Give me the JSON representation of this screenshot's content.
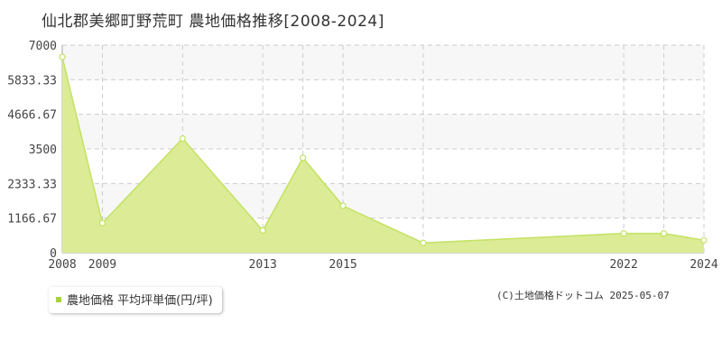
{
  "title": "仙北郡美郷町野荒町 農地価格推移[2008-2024]",
  "legend_label": "農地価格 平均坪単価(円/坪)",
  "copyright": "(C)土地価格ドットコム 2025-05-07",
  "colors": {
    "fill": "#dceb95",
    "line": "#c3e264",
    "marker": "#a8d23c",
    "grid": "#cccccc",
    "band": "#f7f7f7"
  },
  "chart_data": {
    "type": "area",
    "x": [
      2008,
      2009,
      2011,
      2013,
      2014,
      2015,
      2017,
      2022,
      2023,
      2024
    ],
    "series": [
      {
        "name": "農地価格 平均坪単価(円/坪)",
        "values": [
          6600,
          1000,
          3850,
          750,
          3200,
          1580,
          330,
          650,
          650,
          420
        ]
      }
    ],
    "xticks": [
      2008,
      2009,
      2013,
      2015,
      2022,
      2024
    ],
    "yticks": [
      0,
      1166.67,
      2333.33,
      3500,
      4666.67,
      5833.33,
      7000
    ],
    "ytick_labels": [
      "0",
      "1166.67",
      "2333.33",
      "3500",
      "4666.67",
      "5833.33",
      "7000"
    ],
    "ylim": [
      0,
      7000
    ],
    "grid": true
  }
}
